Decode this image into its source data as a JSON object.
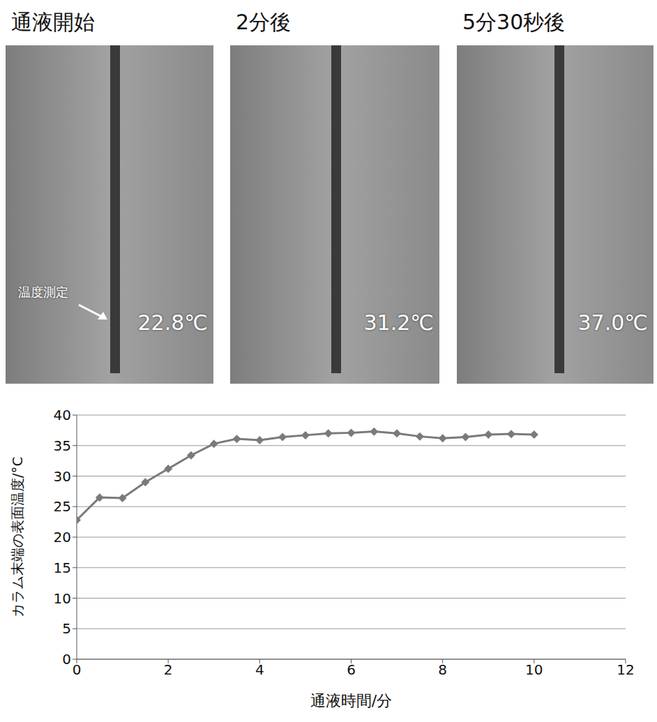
{
  "panels": [
    {
      "title": "通液開始",
      "temperature": "22.8℃",
      "annotation": "温度測定"
    },
    {
      "title": "2分後",
      "temperature": "31.2℃"
    },
    {
      "title": "5分30秒後",
      "temperature": "37.0℃"
    }
  ],
  "chart_data": {
    "type": "line",
    "x_label": "通液時間/分",
    "y_label": "カラム末端の表面温度/°C",
    "x": [
      0,
      0.5,
      1,
      1.5,
      2,
      2.5,
      3,
      3.5,
      4,
      4.5,
      5,
      5.5,
      6,
      6.5,
      7,
      7.5,
      8,
      8.5,
      9,
      9.5,
      10
    ],
    "values": [
      22.8,
      26.5,
      26.4,
      29.0,
      31.2,
      33.4,
      35.3,
      36.1,
      35.9,
      36.4,
      36.7,
      37.0,
      37.1,
      37.3,
      37.0,
      36.5,
      36.2,
      36.4,
      36.8,
      36.9,
      36.8
    ],
    "color": "#7a7a7a",
    "marker": "diamond",
    "xlim": [
      0,
      12
    ],
    "xticks": [
      0,
      2,
      4,
      6,
      8,
      10,
      12
    ],
    "ylim": [
      0,
      40
    ],
    "yticks": [
      0,
      5,
      10,
      15,
      20,
      25,
      30,
      35,
      40
    ],
    "grid": true
  }
}
